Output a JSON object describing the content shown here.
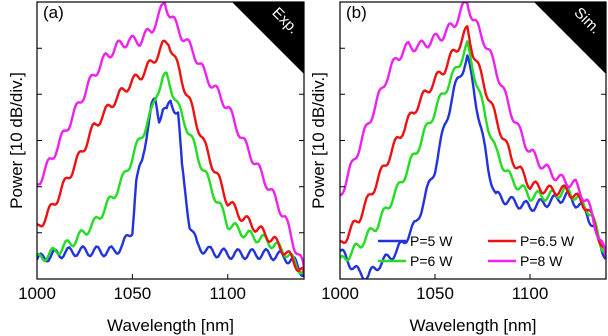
{
  "chart_data": [
    {
      "type": "line",
      "panel_label": "(a)",
      "corner_tag": "Exp.",
      "xlabel": "Wavelength [nm]",
      "ylabel": "Power [10 dB/div.]",
      "xlim": [
        1000,
        1140
      ],
      "ylim": [
        0,
        1
      ],
      "x_ticks": [
        1000,
        1050,
        1100
      ],
      "y_ticks": [
        0.0,
        0.167,
        0.333,
        0.5,
        0.667,
        0.833,
        1.0
      ],
      "series": [
        {
          "color": "#2233dd",
          "points": [
            [
              1000,
              0.07
            ],
            [
              1010,
              0.09
            ],
            [
              1020,
              0.1
            ],
            [
              1030,
              0.1
            ],
            [
              1040,
              0.1
            ],
            [
              1045,
              0.12
            ],
            [
              1050,
              0.18
            ],
            [
              1052,
              0.35
            ],
            [
              1055,
              0.42
            ],
            [
              1058,
              0.55
            ],
            [
              1060,
              0.62
            ],
            [
              1062,
              0.64
            ],
            [
              1064,
              0.58
            ],
            [
              1066,
              0.62
            ],
            [
              1068,
              0.6
            ],
            [
              1070,
              0.64
            ],
            [
              1072,
              0.62
            ],
            [
              1074,
              0.6
            ],
            [
              1076,
              0.4
            ],
            [
              1080,
              0.2
            ],
            [
              1084,
              0.12
            ],
            [
              1090,
              0.1
            ],
            [
              1100,
              0.09
            ],
            [
              1110,
              0.09
            ],
            [
              1120,
              0.09
            ],
            [
              1130,
              0.08
            ],
            [
              1135,
              0.06
            ],
            [
              1140,
              0.02
            ]
          ]
        },
        {
          "color": "#22dd22",
          "points": [
            [
              1000,
              0.07
            ],
            [
              1010,
              0.1
            ],
            [
              1020,
              0.14
            ],
            [
              1030,
              0.2
            ],
            [
              1040,
              0.3
            ],
            [
              1045,
              0.36
            ],
            [
              1050,
              0.44
            ],
            [
              1055,
              0.52
            ],
            [
              1060,
              0.6
            ],
            [
              1063,
              0.68
            ],
            [
              1066,
              0.72
            ],
            [
              1068,
              0.73
            ],
            [
              1070,
              0.7
            ],
            [
              1074,
              0.62
            ],
            [
              1078,
              0.56
            ],
            [
              1084,
              0.45
            ],
            [
              1090,
              0.35
            ],
            [
              1096,
              0.26
            ],
            [
              1100,
              0.2
            ],
            [
              1110,
              0.16
            ],
            [
              1120,
              0.14
            ],
            [
              1130,
              0.1
            ],
            [
              1135,
              0.06
            ],
            [
              1140,
              0.02
            ]
          ]
        },
        {
          "color": "#ee1111",
          "points": [
            [
              1000,
              0.18
            ],
            [
              1008,
              0.26
            ],
            [
              1015,
              0.35
            ],
            [
              1022,
              0.44
            ],
            [
              1030,
              0.55
            ],
            [
              1040,
              0.64
            ],
            [
              1048,
              0.7
            ],
            [
              1055,
              0.74
            ],
            [
              1060,
              0.78
            ],
            [
              1063,
              0.81
            ],
            [
              1066,
              0.84
            ],
            [
              1069,
              0.86
            ],
            [
              1072,
              0.8
            ],
            [
              1076,
              0.72
            ],
            [
              1082,
              0.6
            ],
            [
              1088,
              0.48
            ],
            [
              1094,
              0.38
            ],
            [
              1100,
              0.28
            ],
            [
              1108,
              0.22
            ],
            [
              1116,
              0.18
            ],
            [
              1124,
              0.14
            ],
            [
              1130,
              0.1
            ],
            [
              1135,
              0.06
            ],
            [
              1140,
              0.02
            ]
          ]
        },
        {
          "color": "#ee22ee",
          "points": [
            [
              1000,
              0.34
            ],
            [
              1008,
              0.44
            ],
            [
              1016,
              0.55
            ],
            [
              1024,
              0.66
            ],
            [
              1030,
              0.74
            ],
            [
              1036,
              0.8
            ],
            [
              1042,
              0.84
            ],
            [
              1048,
              0.86
            ],
            [
              1054,
              0.86
            ],
            [
              1060,
              0.9
            ],
            [
              1064,
              0.95
            ],
            [
              1067,
              1.0
            ],
            [
              1070,
              0.95
            ],
            [
              1076,
              0.88
            ],
            [
              1082,
              0.82
            ],
            [
              1088,
              0.74
            ],
            [
              1094,
              0.68
            ],
            [
              1100,
              0.62
            ],
            [
              1108,
              0.5
            ],
            [
              1116,
              0.4
            ],
            [
              1124,
              0.3
            ],
            [
              1130,
              0.22
            ],
            [
              1135,
              0.12
            ],
            [
              1140,
              0.04
            ]
          ]
        }
      ]
    },
    {
      "type": "line",
      "panel_label": "(b)",
      "corner_tag": "Sim.",
      "xlabel": "Wavelength [nm]",
      "ylabel": "Power [10 dB/div.]",
      "xlim": [
        1000,
        1140
      ],
      "ylim": [
        0,
        1
      ],
      "x_ticks": [
        1000,
        1050,
        1100
      ],
      "y_ticks": [
        0.0,
        0.167,
        0.333,
        0.5,
        0.667,
        0.833,
        1.0
      ],
      "legend": [
        "P=5 W",
        "P=6.5 W",
        "P=6 W",
        "P=8 W"
      ],
      "series": [
        {
          "name": "P=5 W",
          "color": "#2233dd",
          "points": [
            [
              1000,
              0.1
            ],
            [
              1005,
              0.06
            ],
            [
              1010,
              0.02
            ],
            [
              1015,
              0.01
            ],
            [
              1020,
              0.05
            ],
            [
              1030,
              0.1
            ],
            [
              1040,
              0.2
            ],
            [
              1045,
              0.3
            ],
            [
              1050,
              0.4
            ],
            [
              1055,
              0.55
            ],
            [
              1060,
              0.68
            ],
            [
              1064,
              0.75
            ],
            [
              1067,
              0.8
            ],
            [
              1070,
              0.7
            ],
            [
              1074,
              0.55
            ],
            [
              1078,
              0.4
            ],
            [
              1082,
              0.3
            ],
            [
              1090,
              0.28
            ],
            [
              1100,
              0.26
            ],
            [
              1110,
              0.28
            ],
            [
              1120,
              0.3
            ],
            [
              1130,
              0.24
            ],
            [
              1135,
              0.16
            ],
            [
              1140,
              0.08
            ]
          ]
        },
        {
          "name": "P=6 W",
          "color": "#22dd22",
          "points": [
            [
              1000,
              0.06
            ],
            [
              1010,
              0.12
            ],
            [
              1020,
              0.2
            ],
            [
              1030,
              0.32
            ],
            [
              1040,
              0.46
            ],
            [
              1048,
              0.58
            ],
            [
              1055,
              0.68
            ],
            [
              1060,
              0.74
            ],
            [
              1064,
              0.8
            ],
            [
              1067,
              0.84
            ],
            [
              1070,
              0.76
            ],
            [
              1076,
              0.6
            ],
            [
              1082,
              0.46
            ],
            [
              1090,
              0.36
            ],
            [
              1100,
              0.3
            ],
            [
              1110,
              0.3
            ],
            [
              1120,
              0.32
            ],
            [
              1130,
              0.26
            ],
            [
              1135,
              0.18
            ],
            [
              1140,
              0.08
            ]
          ]
        },
        {
          "name": "P=6.5 W",
          "color": "#ee1111",
          "points": [
            [
              1000,
              0.12
            ],
            [
              1010,
              0.22
            ],
            [
              1020,
              0.36
            ],
            [
              1030,
              0.5
            ],
            [
              1040,
              0.62
            ],
            [
              1048,
              0.7
            ],
            [
              1055,
              0.76
            ],
            [
              1060,
              0.82
            ],
            [
              1064,
              0.86
            ],
            [
              1067,
              0.9
            ],
            [
              1070,
              0.82
            ],
            [
              1076,
              0.7
            ],
            [
              1082,
              0.58
            ],
            [
              1090,
              0.44
            ],
            [
              1100,
              0.34
            ],
            [
              1110,
              0.32
            ],
            [
              1120,
              0.32
            ],
            [
              1130,
              0.26
            ],
            [
              1135,
              0.18
            ],
            [
              1140,
              0.08
            ]
          ]
        },
        {
          "name": "P=8 W",
          "color": "#ee22ee",
          "points": [
            [
              1000,
              0.3
            ],
            [
              1008,
              0.44
            ],
            [
              1016,
              0.58
            ],
            [
              1024,
              0.72
            ],
            [
              1030,
              0.8
            ],
            [
              1036,
              0.84
            ],
            [
              1042,
              0.84
            ],
            [
              1048,
              0.86
            ],
            [
              1054,
              0.88
            ],
            [
              1060,
              0.92
            ],
            [
              1064,
              0.97
            ],
            [
              1067,
              1.0
            ],
            [
              1070,
              0.94
            ],
            [
              1076,
              0.86
            ],
            [
              1082,
              0.76
            ],
            [
              1088,
              0.64
            ],
            [
              1094,
              0.54
            ],
            [
              1100,
              0.46
            ],
            [
              1108,
              0.4
            ],
            [
              1116,
              0.36
            ],
            [
              1124,
              0.34
            ],
            [
              1130,
              0.28
            ],
            [
              1135,
              0.18
            ],
            [
              1140,
              0.08
            ]
          ]
        }
      ]
    }
  ]
}
